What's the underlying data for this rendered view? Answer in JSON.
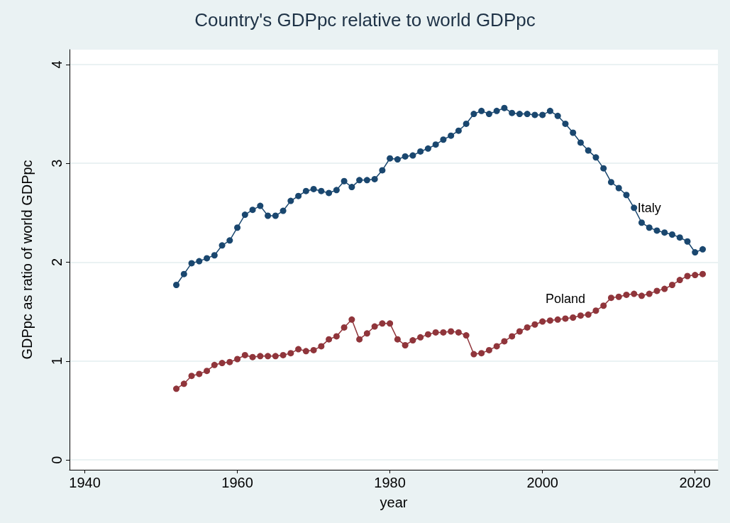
{
  "chart_data": {
    "type": "line",
    "title": "Country's GDPpc relative to world GDPpc",
    "xlabel": "year",
    "ylabel": "GDPpc as ratio of world GDPpc",
    "x": [
      1952,
      1953,
      1954,
      1955,
      1956,
      1957,
      1958,
      1959,
      1960,
      1961,
      1962,
      1963,
      1964,
      1965,
      1966,
      1967,
      1968,
      1969,
      1970,
      1971,
      1972,
      1973,
      1974,
      1975,
      1976,
      1977,
      1978,
      1979,
      1980,
      1981,
      1982,
      1983,
      1984,
      1985,
      1986,
      1987,
      1988,
      1989,
      1990,
      1991,
      1992,
      1993,
      1994,
      1995,
      1996,
      1997,
      1998,
      1999,
      2000,
      2001,
      2002,
      2003,
      2004,
      2005,
      2006,
      2007,
      2008,
      2009,
      2010,
      2011,
      2012,
      2013,
      2014,
      2015,
      2016,
      2017,
      2018,
      2019,
      2020,
      2021
    ],
    "series": [
      {
        "name": "Italy",
        "color": "#1a476f",
        "values": [
          1.77,
          1.88,
          1.99,
          2.01,
          2.04,
          2.07,
          2.17,
          2.22,
          2.35,
          2.48,
          2.53,
          2.57,
          2.47,
          2.47,
          2.52,
          2.62,
          2.67,
          2.72,
          2.74,
          2.72,
          2.7,
          2.73,
          2.82,
          2.76,
          2.83,
          2.83,
          2.84,
          2.93,
          3.05,
          3.04,
          3.07,
          3.08,
          3.12,
          3.15,
          3.19,
          3.24,
          3.28,
          3.33,
          3.4,
          3.5,
          3.53,
          3.5,
          3.53,
          3.56,
          3.51,
          3.5,
          3.5,
          3.49,
          3.49,
          3.53,
          3.48,
          3.4,
          3.31,
          3.21,
          3.13,
          3.06,
          2.95,
          2.81,
          2.75,
          2.68,
          2.55,
          2.4,
          2.35,
          2.32,
          2.3,
          2.28,
          2.25,
          2.21,
          2.1,
          2.13
        ]
      },
      {
        "name": "Poland",
        "color": "#90353b",
        "values": [
          0.72,
          0.77,
          0.85,
          0.87,
          0.9,
          0.96,
          0.98,
          0.99,
          1.02,
          1.06,
          1.04,
          1.05,
          1.05,
          1.05,
          1.06,
          1.08,
          1.12,
          1.1,
          1.11,
          1.15,
          1.22,
          1.25,
          1.34,
          1.42,
          1.22,
          1.28,
          1.35,
          1.38,
          1.38,
          1.22,
          1.16,
          1.21,
          1.24,
          1.27,
          1.29,
          1.29,
          1.3,
          1.29,
          1.26,
          1.07,
          1.08,
          1.11,
          1.15,
          1.2,
          1.25,
          1.3,
          1.34,
          1.37,
          1.4,
          1.41,
          1.42,
          1.43,
          1.44,
          1.46,
          1.47,
          1.51,
          1.56,
          1.64,
          1.65,
          1.67,
          1.68,
          1.66,
          1.68,
          1.71,
          1.73,
          1.77,
          1.82,
          1.86,
          1.87,
          1.88
        ]
      }
    ],
    "xlim": [
      1938,
      2023
    ],
    "xticks": [
      1940,
      1960,
      1980,
      2000,
      2020
    ],
    "ylim": [
      -0.1,
      4.15
    ],
    "yticks": [
      0,
      1,
      2,
      3,
      4
    ],
    "grid": "y",
    "legend": false,
    "marker": "circle",
    "line_style": "solid"
  }
}
